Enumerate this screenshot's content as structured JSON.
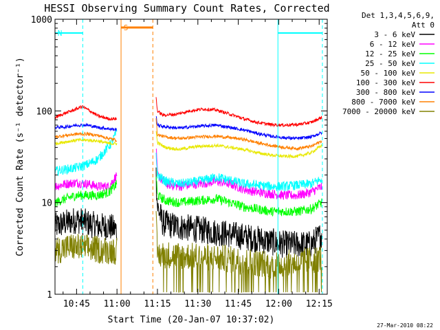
{
  "chart_data": {
    "type": "line",
    "title": "HESSI Observing Summary Count Rates, Corrected",
    "xlabel": "Start Time (20-Jan-07 10:37:02)",
    "ylabel": "Corrected Count Rate (s⁻¹ detector⁻¹)",
    "x_unit": "minutes after 10:37:02",
    "xlim": [
      0,
      101
    ],
    "ylim": [
      1,
      1000
    ],
    "yscale": "log",
    "grid": false,
    "x_ticks": [
      {
        "label": "10:45",
        "value": 8
      },
      {
        "label": "11:00",
        "value": 23
      },
      {
        "label": "11:15",
        "value": 38
      },
      {
        "label": "11:30",
        "value": 53
      },
      {
        "label": "11:45",
        "value": 68
      },
      {
        "label": "12:00",
        "value": 83
      },
      {
        "label": "12:15",
        "value": 98
      }
    ],
    "y_ticks": [
      {
        "label": "1",
        "value": 1
      },
      {
        "label": "10",
        "value": 10
      },
      {
        "label": "100",
        "value": 100
      },
      {
        "label": "1000",
        "value": 1000
      }
    ],
    "legend": {
      "position": "right",
      "header": [
        "Det 1,3,4,5,6,9,",
        "Att 0"
      ]
    },
    "series": [
      {
        "name": "3 - 6 keV",
        "color": "#000000",
        "noise": 0.35,
        "segments": [
          {
            "x": [
              0,
              4,
              8,
              12,
              16,
              20,
              23
            ],
            "y": [
              5.5,
              6,
              6.5,
              6,
              5.5,
              5.5,
              5
            ]
          },
          {
            "x": [
              37.5,
              38,
              40,
              45,
              55,
              65,
              75,
              85,
              95,
              99
            ],
            "y": [
              20,
              9,
              6,
              5.5,
              5,
              4.5,
              4,
              3.5,
              3.5,
              4.5
            ]
          }
        ]
      },
      {
        "name": "6 - 12 keV",
        "color": "#ff00ff",
        "noise": 0.12,
        "segments": [
          {
            "x": [
              0,
              4,
              8,
              12,
              16,
              20,
              23
            ],
            "y": [
              15,
              16,
              16.5,
              16,
              15,
              15,
              20
            ]
          },
          {
            "x": [
              37.5,
              38,
              41,
              46,
              53,
              60,
              65,
              70,
              75,
              80,
              85,
              90,
              95,
              99
            ],
            "y": [
              40,
              20,
              16,
              15,
              16,
              17,
              16,
              14,
              13,
              12.5,
              12,
              12,
              13,
              15
            ]
          }
        ]
      },
      {
        "name": "12 - 25 keV",
        "color": "#00ff00",
        "noise": 0.12,
        "segments": [
          {
            "x": [
              0,
              4,
              8,
              12,
              16,
              20,
              23
            ],
            "y": [
              10,
              11,
              12,
              12,
              12,
              13,
              16
            ]
          },
          {
            "x": [
              37.5,
              38,
              41,
              46,
              53,
              60,
              65,
              70,
              75,
              80,
              85,
              90,
              95,
              99
            ],
            "y": [
              20,
              12,
              10.5,
              10,
              10.5,
              11,
              10,
              9,
              8.5,
              8,
              8,
              8,
              8.5,
              10
            ]
          }
        ]
      },
      {
        "name": "25 - 50 keV",
        "color": "#00ffff",
        "noise": 0.12,
        "segments": [
          {
            "x": [
              0,
              4,
              8,
              12,
              16,
              19,
              21,
              23
            ],
            "y": [
              22,
              23,
              24,
              26,
              30,
              38,
              45,
              60
            ]
          },
          {
            "x": [
              37.5,
              38,
              41,
              46,
              53,
              60,
              65,
              70,
              75,
              80,
              85,
              90,
              95,
              99
            ],
            "y": [
              35,
              20,
              17,
              16,
              17,
              19,
              17.5,
              16,
              15.5,
              15,
              15,
              15.5,
              16,
              18
            ]
          }
        ]
      },
      {
        "name": "50 - 100 keV",
        "color": "#e8e800",
        "noise": 0.04,
        "segments": [
          {
            "x": [
              0,
              4,
              8,
              12,
              16,
              20,
              23
            ],
            "y": [
              44,
              46,
              48,
              48,
              47,
              44,
              44
            ]
          },
          {
            "x": [
              37.5,
              38,
              41,
              46,
              53,
              60,
              65,
              70,
              75,
              80,
              85,
              90,
              95,
              99
            ],
            "y": [
              60,
              45,
              40,
              38,
              41,
              42,
              40,
              38,
              35,
              33,
              32,
              32,
              35,
              42
            ]
          }
        ]
      },
      {
        "name": "100 - 300 keV",
        "color": "#ff0000",
        "noise": 0.04,
        "segments": [
          {
            "x": [
              0,
              4,
              8,
              10,
              13,
              16,
              20,
              23
            ],
            "y": [
              85,
              95,
              105,
              112,
              100,
              88,
              82,
              82
            ]
          },
          {
            "x": [
              37.5,
              38,
              40,
              45,
              50,
              55,
              60,
              65,
              70,
              75,
              80,
              85,
              90,
              95,
              99
            ],
            "y": [
              140,
              100,
              90,
              92,
              100,
              105,
              102,
              92,
              82,
              75,
              71,
              70,
              71,
              75,
              85
            ]
          }
        ]
      },
      {
        "name": "300 - 800 keV",
        "color": "#0000ff",
        "noise": 0.04,
        "segments": [
          {
            "x": [
              0,
              4,
              8,
              12,
              16,
              20,
              23
            ],
            "y": [
              66,
              67,
              70,
              70,
              66,
              64,
              62
            ]
          },
          {
            "x": [
              37.5,
              38,
              41,
              46,
              53,
              60,
              65,
              70,
              75,
              80,
              85,
              90,
              95,
              99
            ],
            "y": [
              90,
              70,
              67,
              65,
              68,
              70,
              66,
              62,
              57,
              53,
              51,
              50,
              52,
              58
            ]
          }
        ]
      },
      {
        "name": "800 - 7000 keV",
        "color": "#ff8000",
        "noise": 0.04,
        "segments": [
          {
            "x": [
              0,
              4,
              8,
              12,
              16,
              20,
              23
            ],
            "y": [
              52,
              54,
              56,
              56,
              54,
              50,
              48
            ]
          },
          {
            "x": [
              37.5,
              38,
              41,
              46,
              53,
              60,
              65,
              70,
              75,
              80,
              85,
              90,
              95,
              99
            ],
            "y": [
              80,
              55,
              52,
              50,
              52,
              53,
              51,
              49,
              45,
              42,
              40,
              39,
              41,
              47
            ]
          }
        ]
      },
      {
        "name": "7000 - 20000 keV",
        "color": "#808000",
        "noise": 0.35,
        "floor": 1,
        "segments": [
          {
            "x": [
              0,
              6,
              12,
              18,
              23
            ],
            "y": [
              3,
              3.3,
              3.2,
              3,
              3
            ]
          },
          {
            "x": [
              37.5,
              38,
              42,
              50,
              60,
              70,
              80,
              90,
              99
            ],
            "y": [
              6,
              2.7,
              2.7,
              2.6,
              2.5,
              2.3,
              2.1,
              2.2,
              2.5
            ]
          }
        ]
      }
    ],
    "intervals": [
      {
        "label": "N",
        "color": "#00ffff",
        "start": 0,
        "end": 10.3
      },
      {
        "label": "",
        "color": "#00ffff",
        "start": 82.7,
        "end": 99.2
      },
      {
        "label": "S",
        "color": "#ff8000",
        "start": 24.5,
        "end": 36.3
      }
    ],
    "timestamp": "27-Mar-2010 08:22"
  }
}
